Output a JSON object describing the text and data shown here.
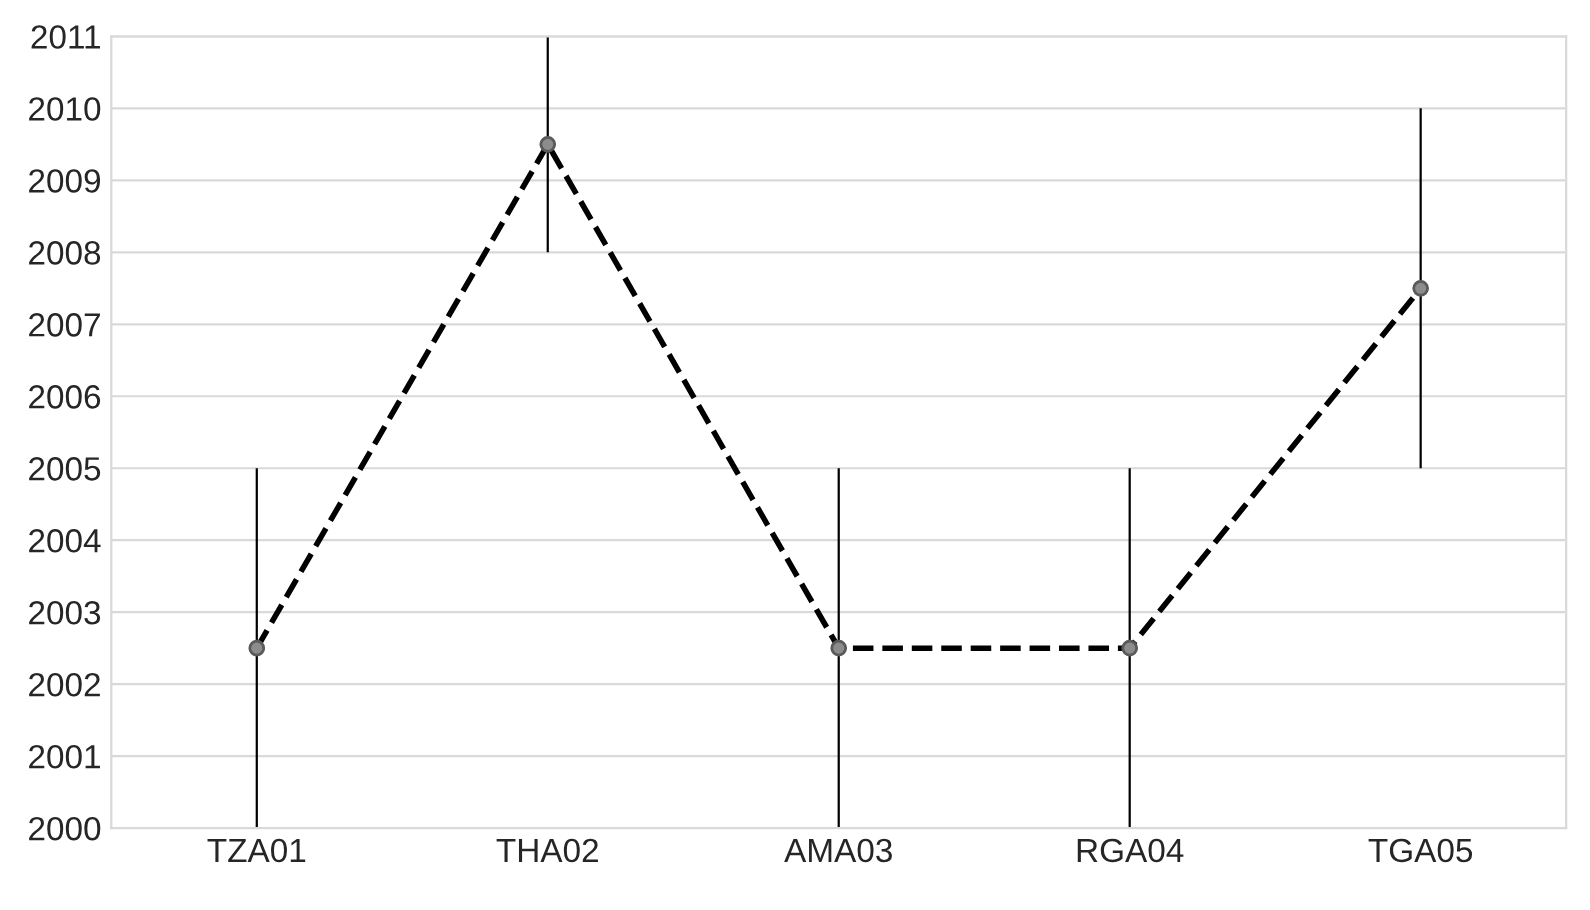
{
  "chart_data": {
    "type": "line",
    "categories": [
      "TZA01",
      "THA02",
      "AMA03",
      "RGA04",
      "TGA05"
    ],
    "series": [
      {
        "color": "#000000",
        "values": [
          2002.5,
          2009.5,
          2002.5,
          2002.5,
          2007.5
        ],
        "errors": [
          2.5,
          1.5,
          2.5,
          2.5,
          2.5
        ]
      }
    ],
    "ylim": [
      2000,
      2011
    ],
    "yticks": [
      2000,
      2001,
      2002,
      2003,
      2004,
      2005,
      2006,
      2007,
      2008,
      2009,
      2010,
      2011
    ],
    "grid": "y",
    "marker": "circle",
    "line_style": "dashed",
    "legend": false
  }
}
